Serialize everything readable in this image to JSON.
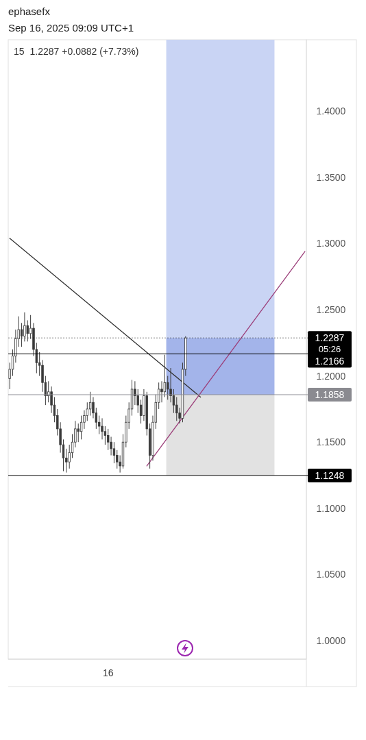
{
  "chart_data": {
    "type": "candlestick",
    "title": "15",
    "subtitle": "1.2287 +0.0882 (+7.73%)",
    "annotations": [
      "ephasefx",
      "Sep 16, 2025 09:09 UTC+1",
      "05:26",
      "16"
    ],
    "categories": [
      null,
      null,
      null,
      null,
      null,
      null,
      null,
      null,
      null,
      null,
      null,
      null,
      null,
      null,
      null,
      null,
      null,
      null,
      null,
      null,
      null,
      null,
      null,
      null,
      null,
      null,
      null,
      null,
      null,
      null,
      null,
      null,
      null,
      null,
      null,
      null,
      null,
      null,
      null,
      null,
      null,
      null,
      null,
      null,
      null,
      null,
      null,
      null,
      null,
      null,
      null,
      null,
      null,
      null,
      null,
      null,
      null,
      null,
      null,
      null,
      null,
      null,
      null,
      null,
      null,
      null,
      null,
      null,
      null,
      null,
      null,
      null,
      null,
      null,
      null,
      null,
      null,
      null,
      null,
      null,
      null,
      null,
      null,
      null,
      null,
      null,
      null,
      null,
      null,
      null,
      null,
      null,
      null,
      null,
      null,
      null,
      null,
      null,
      null,
      null
    ],
    "ohlc": [
      [
        1.198,
        1.21,
        1.19,
        1.205
      ],
      [
        1.205,
        1.22,
        1.2,
        1.215
      ],
      [
        1.215,
        1.235,
        1.21,
        1.228
      ],
      [
        1.228,
        1.245,
        1.222,
        1.235
      ],
      [
        1.235,
        1.24,
        1.222,
        1.23
      ],
      [
        1.23,
        1.248,
        1.226,
        1.238
      ],
      [
        1.238,
        1.242,
        1.226,
        1.232
      ],
      [
        1.232,
        1.246,
        1.228,
        1.236
      ],
      [
        1.236,
        1.24,
        1.215,
        1.22
      ],
      [
        1.22,
        1.225,
        1.202,
        1.21
      ],
      [
        1.21,
        1.218,
        1.2,
        1.208
      ],
      [
        1.208,
        1.212,
        1.188,
        1.195
      ],
      [
        1.195,
        1.2,
        1.178,
        1.185
      ],
      [
        1.185,
        1.196,
        1.18,
        1.188
      ],
      [
        1.188,
        1.192,
        1.172,
        1.178
      ],
      [
        1.178,
        1.184,
        1.165,
        1.17
      ],
      [
        1.17,
        1.175,
        1.155,
        1.16
      ],
      [
        1.16,
        1.165,
        1.142,
        1.148
      ],
      [
        1.148,
        1.152,
        1.128,
        1.138
      ],
      [
        1.138,
        1.145,
        1.127,
        1.135
      ],
      [
        1.135,
        1.148,
        1.13,
        1.142
      ],
      [
        1.142,
        1.156,
        1.138,
        1.15
      ],
      [
        1.15,
        1.166,
        1.146,
        1.16
      ],
      [
        1.16,
        1.164,
        1.15,
        1.158
      ],
      [
        1.158,
        1.17,
        1.152,
        1.165
      ],
      [
        1.165,
        1.174,
        1.16,
        1.17
      ],
      [
        1.17,
        1.18,
        1.166,
        1.175
      ],
      [
        1.175,
        1.188,
        1.17,
        1.18
      ],
      [
        1.18,
        1.184,
        1.168,
        1.172
      ],
      [
        1.172,
        1.176,
        1.16,
        1.165
      ],
      [
        1.165,
        1.17,
        1.156,
        1.162
      ],
      [
        1.162,
        1.168,
        1.152,
        1.158
      ],
      [
        1.158,
        1.162,
        1.148,
        1.155
      ],
      [
        1.155,
        1.16,
        1.144,
        1.15
      ],
      [
        1.15,
        1.154,
        1.14,
        1.145
      ],
      [
        1.145,
        1.15,
        1.134,
        1.14
      ],
      [
        1.14,
        1.144,
        1.13,
        1.135
      ],
      [
        1.135,
        1.14,
        1.127,
        1.132
      ],
      [
        1.132,
        1.156,
        1.13,
        1.15
      ],
      [
        1.15,
        1.17,
        1.146,
        1.165
      ],
      [
        1.165,
        1.18,
        1.16,
        1.175
      ],
      [
        1.175,
        1.197,
        1.17,
        1.19
      ],
      [
        1.19,
        1.196,
        1.178,
        1.185
      ],
      [
        1.185,
        1.19,
        1.172,
        1.178
      ],
      [
        1.178,
        1.182,
        1.164,
        1.17
      ],
      [
        1.17,
        1.19,
        1.166,
        1.185
      ],
      [
        1.185,
        1.188,
        1.155,
        1.16
      ],
      [
        1.16,
        1.164,
        1.13,
        1.14
      ],
      [
        1.14,
        1.17,
        1.136,
        1.165
      ],
      [
        1.165,
        1.186,
        1.16,
        1.18
      ],
      [
        1.18,
        1.195,
        1.175,
        1.19
      ],
      [
        1.19,
        1.196,
        1.18,
        1.188
      ],
      [
        1.188,
        1.216,
        1.184,
        1.195
      ],
      [
        1.195,
        1.2,
        1.182,
        1.19
      ],
      [
        1.19,
        1.206,
        1.18,
        1.185
      ],
      [
        1.185,
        1.19,
        1.172,
        1.178
      ],
      [
        1.178,
        1.184,
        1.166,
        1.172
      ],
      [
        1.172,
        1.176,
        1.164,
        1.168
      ],
      [
        1.168,
        1.21,
        1.165,
        1.205
      ],
      [
        1.205,
        1.23,
        1.2,
        1.2287
      ],
      null,
      null,
      null,
      null,
      null,
      null,
      null,
      null,
      null,
      null,
      null,
      null,
      null,
      null,
      null,
      null,
      null,
      null,
      null,
      null,
      null,
      null,
      null,
      null,
      null,
      null,
      null,
      null,
      null,
      null,
      null,
      null,
      null,
      null,
      null,
      null,
      null,
      null,
      null,
      null
    ],
    "color": "#3a3a3a",
    "series": [
      {
        "type": "line",
        "color": "#333333",
        "values": [
          1.304,
          null,
          null,
          null,
          null,
          null,
          null,
          null,
          null,
          null,
          null,
          null,
          null,
          null,
          null,
          null,
          null,
          null,
          null,
          null,
          null,
          null,
          null,
          null,
          null,
          null,
          null,
          null,
          null,
          null,
          null,
          null,
          null,
          null,
          null,
          null,
          null,
          null,
          null,
          null,
          null,
          null,
          null,
          null,
          null,
          null,
          null,
          null,
          null,
          null,
          null,
          null,
          null,
          null,
          null,
          null,
          null,
          null,
          null,
          null,
          null,
          null,
          null,
          null,
          1.184,
          null,
          null,
          null,
          null,
          null,
          null,
          null,
          null,
          null,
          null,
          null,
          null,
          null,
          null,
          null,
          null,
          null,
          null,
          null,
          null,
          null,
          null,
          null,
          null,
          null,
          null,
          null,
          null,
          null,
          null,
          null,
          null,
          null,
          null,
          null
        ]
      },
      {
        "type": "line",
        "color": "#9c3f7a",
        "values": [
          null,
          null,
          null,
          null,
          null,
          null,
          null,
          null,
          null,
          null,
          null,
          null,
          null,
          null,
          null,
          null,
          null,
          null,
          null,
          null,
          null,
          null,
          null,
          null,
          null,
          null,
          null,
          null,
          null,
          null,
          null,
          null,
          null,
          null,
          null,
          null,
          null,
          null,
          null,
          null,
          null,
          null,
          null,
          null,
          null,
          null,
          1.132,
          null,
          null,
          null,
          null,
          null,
          null,
          null,
          null,
          null,
          null,
          null,
          null,
          null,
          null,
          null,
          null,
          null,
          null,
          null,
          null,
          null,
          null,
          null,
          null,
          null,
          null,
          null,
          null,
          null,
          null,
          null,
          null,
          null,
          null,
          null,
          null,
          null,
          null,
          null,
          null,
          null,
          null,
          null,
          null,
          null,
          null,
          null,
          null,
          null,
          null,
          null,
          null,
          1.294
        ]
      }
    ],
    "ref_lines": [
      {
        "axis": "y",
        "value": 1.2287,
        "label": "1.2287",
        "color": "#000000",
        "line_style": "dotted"
      },
      {
        "axis": "y",
        "value": 1.2166,
        "label": "1.2166",
        "color": "#000000",
        "line_style": "solid"
      },
      {
        "axis": "y",
        "value": 1.1858,
        "label": "1.1858",
        "color": "#8a8a90",
        "line_style": "solid"
      },
      {
        "axis": "y",
        "value": 1.1248,
        "label": "1.1248",
        "color": "#000000",
        "line_style": "solid"
      }
    ],
    "ylim": [
      0.986,
      1.454
    ],
    "yticks": [
      {
        "value": 1.0,
        "label": "1.0000"
      },
      {
        "value": 1.05,
        "label": "1.0500"
      },
      {
        "value": 1.1,
        "label": "1.1000"
      },
      {
        "value": 1.15,
        "label": "1.1500"
      },
      {
        "value": 1.2,
        "label": "1.2000"
      },
      {
        "value": 1.25,
        "label": "1.2500"
      },
      {
        "value": 1.3,
        "label": "1.3000"
      },
      {
        "value": 1.35,
        "label": "1.3500"
      },
      {
        "value": 1.4,
        "label": "1.4000"
      }
    ],
    "grid": false
  }
}
